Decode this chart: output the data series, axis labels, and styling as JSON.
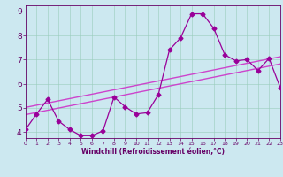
{
  "title": "",
  "xlabel": "Windchill (Refroidissement éolien,°C)",
  "ylabel": "",
  "x": [
    0,
    1,
    2,
    3,
    4,
    5,
    6,
    7,
    8,
    9,
    10,
    11,
    12,
    13,
    14,
    15,
    16,
    17,
    18,
    19,
    20,
    21,
    22,
    23
  ],
  "y_data": [
    4.1,
    4.75,
    5.35,
    4.45,
    4.1,
    3.85,
    3.85,
    4.05,
    5.45,
    5.05,
    4.75,
    4.8,
    5.55,
    7.4,
    7.9,
    8.9,
    8.9,
    8.3,
    7.2,
    6.95,
    7.0,
    6.55,
    7.05,
    5.85
  ],
  "reg_line1": [
    [
      0,
      4.72
    ],
    [
      23,
      6.82
    ]
  ],
  "reg_line2": [
    [
      0,
      5.02
    ],
    [
      23,
      7.12
    ]
  ],
  "line_color": "#990099",
  "reg_color": "#cc44cc",
  "bg_color": "#cce8f0",
  "grid_color": "#99ccbb",
  "axis_color": "#660066",
  "text_color": "#660066",
  "ylim": [
    3.75,
    9.25
  ],
  "xlim": [
    0,
    23
  ],
  "yticks": [
    4,
    5,
    6,
    7,
    8,
    9
  ],
  "xticks": [
    0,
    1,
    2,
    3,
    4,
    5,
    6,
    7,
    8,
    9,
    10,
    11,
    12,
    13,
    14,
    15,
    16,
    17,
    18,
    19,
    20,
    21,
    22,
    23
  ],
  "marker": "D",
  "markersize": 2.5,
  "linewidth": 0.9,
  "reg_linewidth": 1.0
}
